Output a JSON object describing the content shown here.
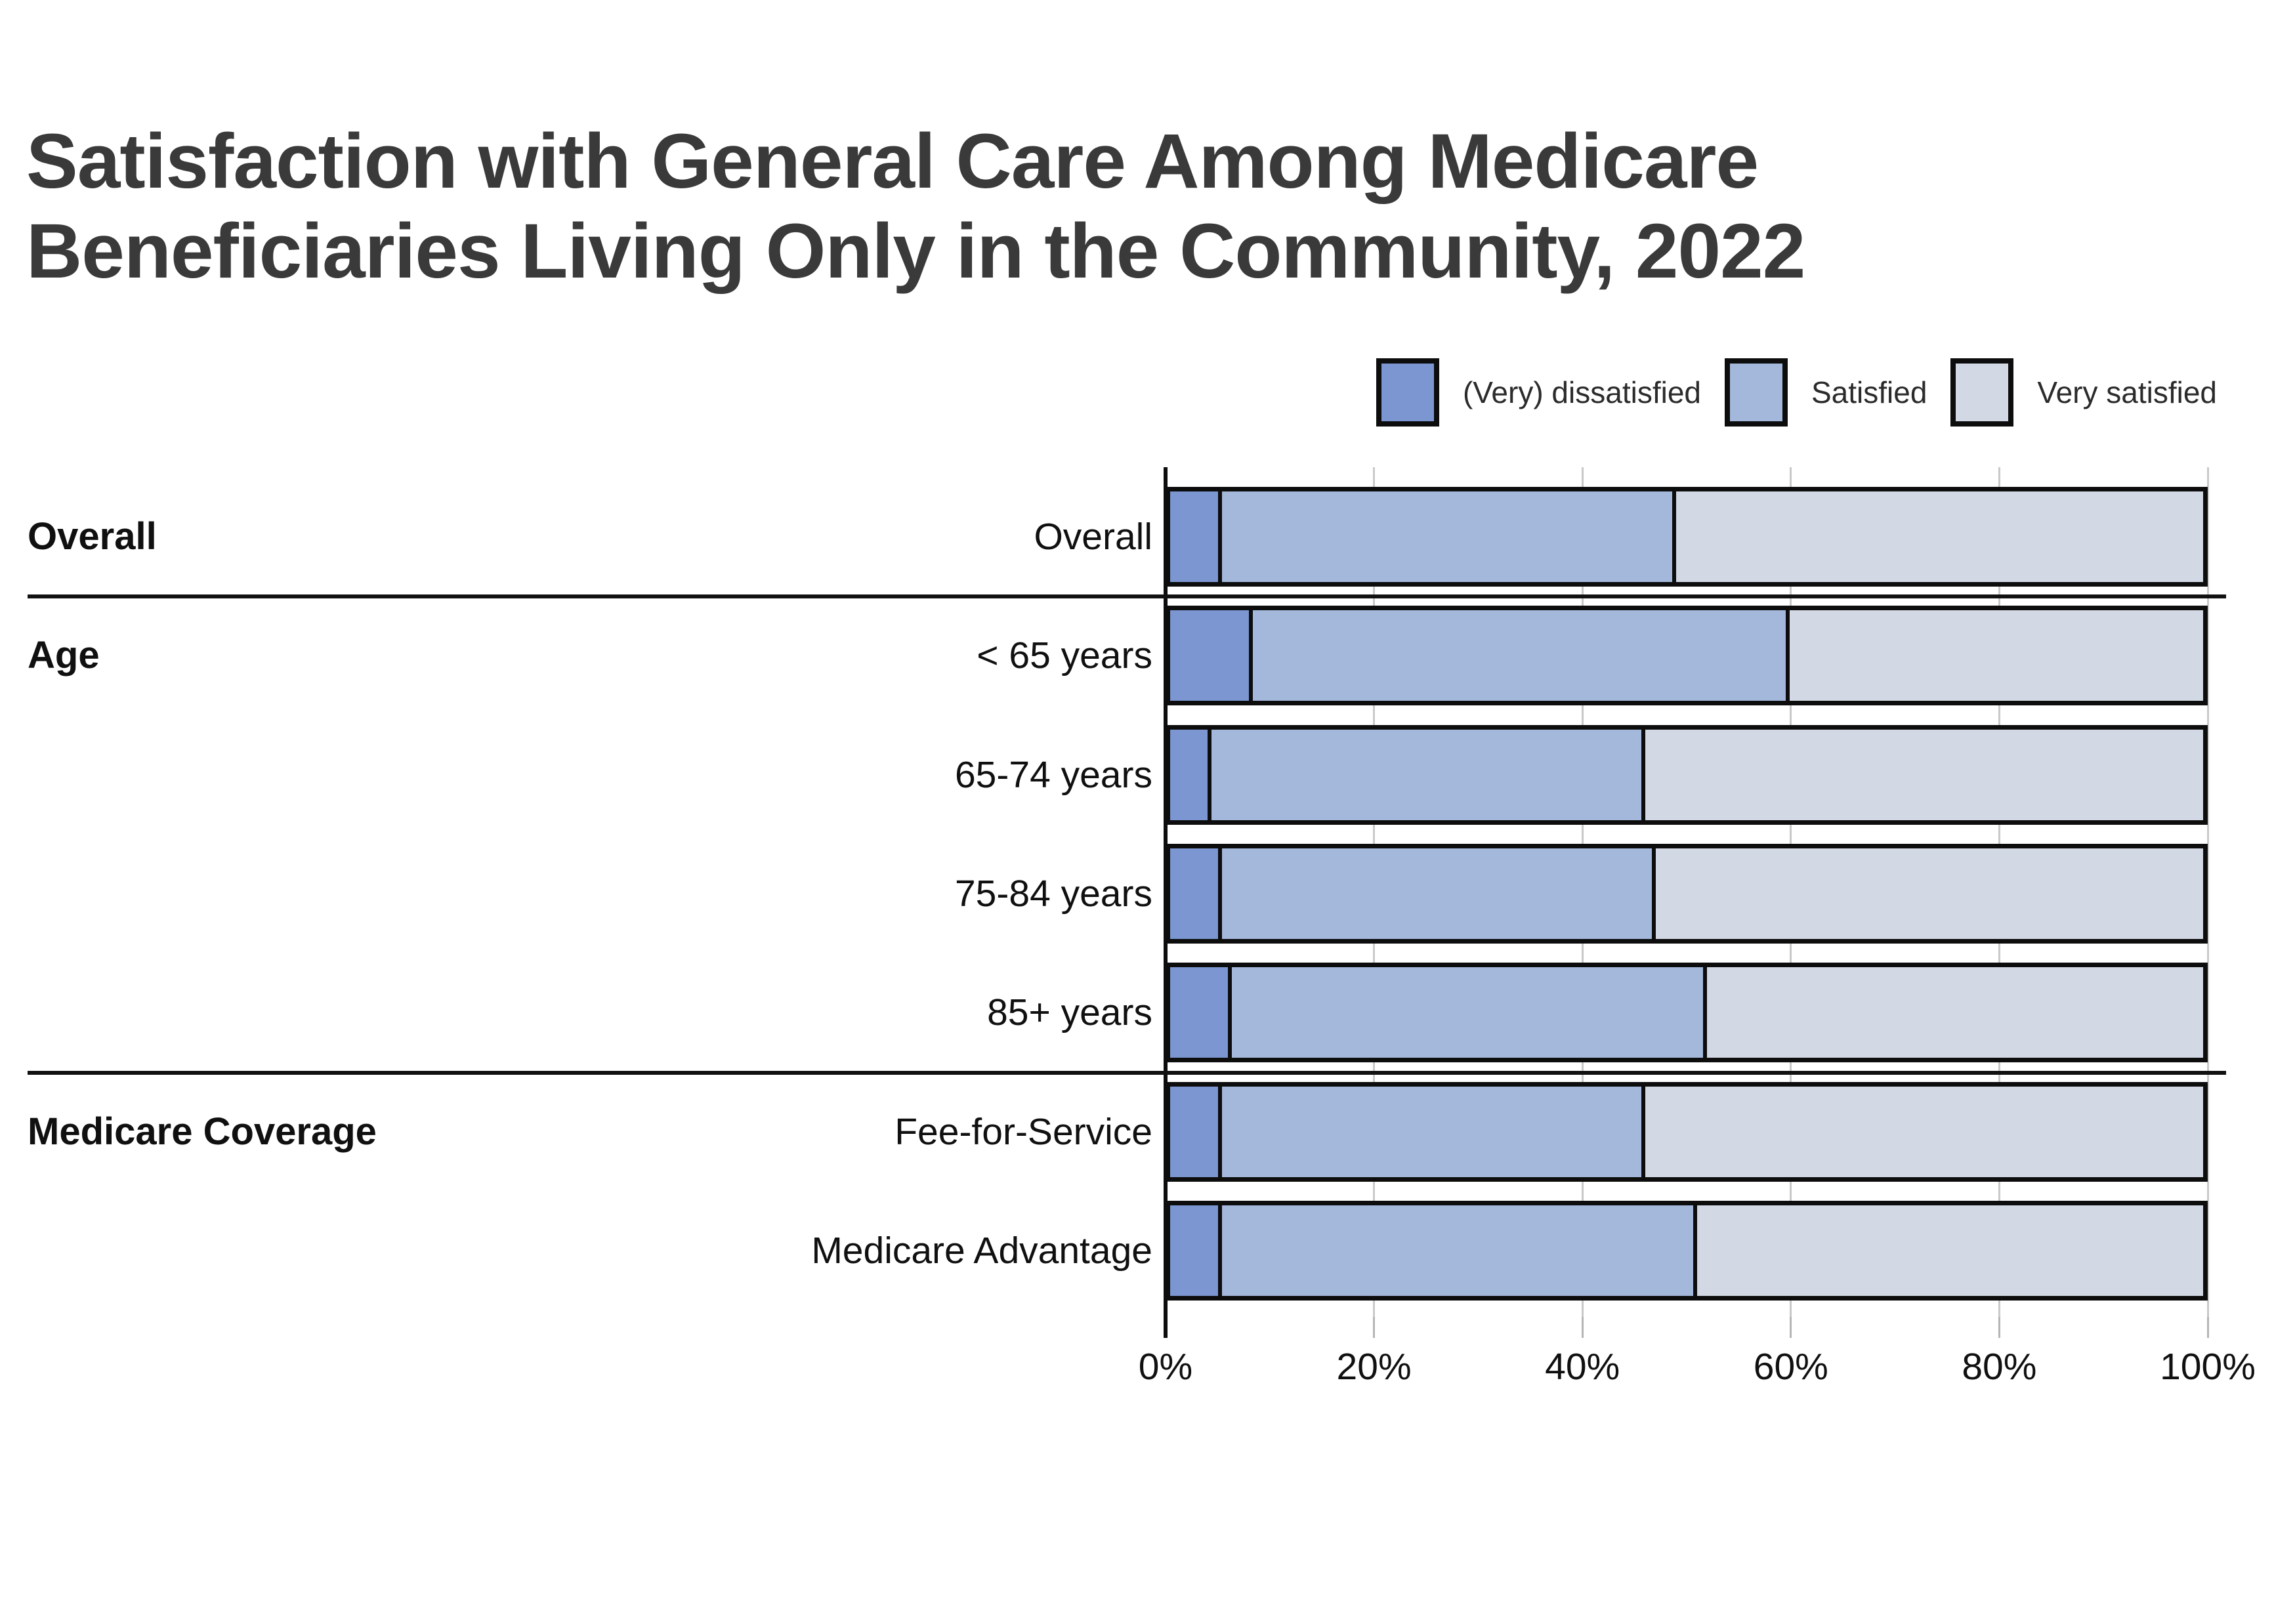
{
  "title": {
    "text": "Satisfaction with General Care Among Medicare Beneficiaries Living Only in the Community, 2022"
  },
  "legend": {
    "items": [
      {
        "label": "(Very) dissatisfied",
        "color": "#7B96D0"
      },
      {
        "label": "Satisfied",
        "color": "#A4B8DC"
      },
      {
        "label": "Very satisfied",
        "color": "#D3D9E4"
      }
    ]
  },
  "chart_data": {
    "type": "bar",
    "orientation": "horizontal",
    "stacked": true,
    "title": "Satisfaction with General Care Among Medicare Beneficiaries Living Only in the Community, 2022",
    "categories": [
      "Overall",
      "< 65 years",
      "65-74 years",
      "75-84 years",
      "85+ years",
      "Fee-for-Service",
      "Medicare Advantage"
    ],
    "category_groups": [
      {
        "label": "Overall",
        "categories": [
          "Overall"
        ]
      },
      {
        "label": "Age",
        "categories": [
          "< 65 years",
          "65-74 years",
          "75-84 years",
          "85+ years"
        ]
      },
      {
        "label": "Medicare Coverage",
        "categories": [
          "Fee-for-Service",
          "Medicare Advantage"
        ]
      }
    ],
    "series": [
      {
        "name": "(Very) dissatisfied",
        "color": "#7B96D0",
        "values": [
          5,
          8,
          4,
          5,
          6,
          5,
          5
        ]
      },
      {
        "name": "Satisfied",
        "color": "#A4B8DC",
        "values": [
          44,
          52,
          42,
          42,
          46,
          41,
          46
        ]
      },
      {
        "name": "Very satisfied",
        "color": "#D3D9E4",
        "values": [
          51,
          40,
          54,
          53,
          48,
          54,
          49
        ]
      }
    ],
    "xlim": [
      0,
      100
    ],
    "x_tick_labels": [
      "0%",
      "20%",
      "40%",
      "60%",
      "80%",
      "100%"
    ],
    "grid": true,
    "legend_position": "top-right"
  },
  "colors": {
    "bar_border": "#0d0d0d",
    "grid_line": "#c9c9c9",
    "separator": "#111111",
    "title_text": "#3a3a3a",
    "label_text": "#101010"
  }
}
